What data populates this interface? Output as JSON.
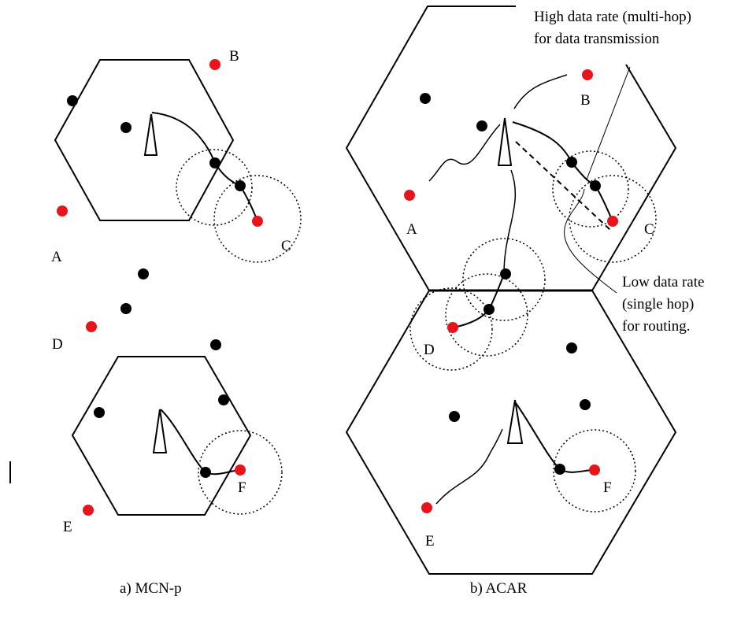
{
  "diagram": {
    "left_panel": {
      "caption": "a) MCN-p",
      "nodes": {
        "A": "A",
        "B": "B",
        "C": "C",
        "D": "D",
        "E": "E",
        "F": "F"
      }
    },
    "right_panel": {
      "caption": "b) ACAR",
      "nodes": {
        "A": "A",
        "B": "B",
        "C": "C",
        "D": "D",
        "E": "E",
        "F": "F"
      },
      "annotation_high": [
        "High data rate (multi-hop)",
        "for data transmission"
      ],
      "annotation_low": [
        "Low data rate",
        "(single hop)",
        "for routing."
      ]
    },
    "colors": {
      "relay_node": "#000000",
      "source_node": "#e8141a",
      "range_circle": "#000000"
    }
  }
}
